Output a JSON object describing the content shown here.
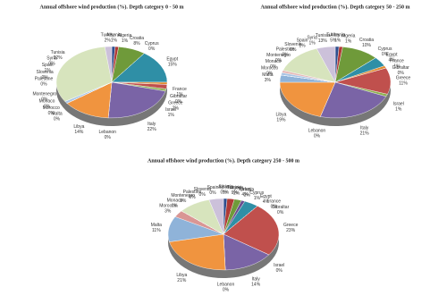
{
  "chart_data": [
    {
      "type": "pie",
      "title": "Annual offshore wind production (%). Depth category 0 - 50 m",
      "categories": [
        "Albania",
        "Algeria",
        "Croatia",
        "Cyprus",
        "Egypt",
        "France",
        "Gibraltar",
        "Greece",
        "Israel",
        "Italy",
        "Lebanon",
        "Libya",
        "Malta",
        "Morocco",
        "Monaco",
        "Montenegro",
        "Palestine",
        "Slovenia",
        "Spain",
        "Syria",
        "Tunisia",
        "Turkey"
      ],
      "values": [
        1,
        1,
        8,
        0,
        15,
        1,
        0,
        2,
        1,
        22,
        0,
        14,
        0,
        0,
        0,
        0,
        0,
        0,
        1,
        0,
        32,
        2
      ],
      "value_labels": [
        "1%",
        "1%",
        "8%",
        "0%",
        "15%",
        "1%",
        "0%",
        "2%",
        "1%",
        "22%",
        "0%",
        "14%",
        "0%",
        "0%",
        "0%",
        "0%",
        "0%",
        "0%",
        "1%",
        "0%",
        "32%",
        "2%"
      ],
      "colors": [
        "#2f4f8f",
        "#b03a36",
        "#6f9a3a",
        "#6a4f8f",
        "#2f8fa6",
        "#e08a2e",
        "#3f6fb0",
        "#c0504d",
        "#8db04f",
        "#7a64a6",
        "#3fa6c0",
        "#f0943f",
        "#8fb3d9",
        "#d99694",
        "#c3d69b",
        "#b3a2c7",
        "#93cddd",
        "#fac08f",
        "#a9c4e4",
        "#e6b9b8",
        "#d7e4bd",
        "#ccc1da"
      ]
    },
    {
      "type": "pie",
      "title": "Annual offshore wind production (%). Depth category 50 - 250 m",
      "categories": [
        "Albania",
        "Algeria",
        "Croatia",
        "Cyprus",
        "Egypt",
        "France",
        "Gibraltar",
        "Greece",
        "Israel",
        "Italy",
        "Lebanon",
        "Libya",
        "Malta",
        "Morocco",
        "Monaco",
        "Montenegro",
        "Palestine",
        "Slovenia",
        "Spain",
        "Syria",
        "Tunisia",
        "Turkey"
      ],
      "values": [
        1,
        1,
        10,
        0,
        4,
        1,
        0,
        11,
        1,
        21,
        0,
        19,
        3,
        0,
        0,
        0,
        0,
        0,
        1,
        1,
        13,
        5
      ],
      "value_labels": [
        "1%",
        "1%",
        "10%",
        "0%",
        "4%",
        "1%",
        "0%",
        "11%",
        "1%",
        "21%",
        "0%",
        "19%",
        "3%",
        "0%",
        "0%",
        "0%",
        "0%",
        "0%",
        "1%",
        "1%",
        "13%",
        "5%"
      ],
      "colors": [
        "#2f4f8f",
        "#b03a36",
        "#6f9a3a",
        "#6a4f8f",
        "#2f8fa6",
        "#e08a2e",
        "#3f6fb0",
        "#c0504d",
        "#8db04f",
        "#7a64a6",
        "#3fa6c0",
        "#f0943f",
        "#8fb3d9",
        "#d99694",
        "#c3d69b",
        "#b3a2c7",
        "#93cddd",
        "#fac08f",
        "#a9c4e4",
        "#e6b9b8",
        "#d7e4bd",
        "#ccc1da"
      ]
    },
    {
      "type": "pie",
      "title": "Annual offshore wind production (%). Depth category 250 - 500 m",
      "categories": [
        "Albania",
        "Algeria",
        "Croatia",
        "Cyprus",
        "Egypt",
        "France",
        "Gibraltar",
        "Greece",
        "Israel",
        "Italy",
        "Lebanon",
        "Libya",
        "Malta",
        "Morocco",
        "Monaco",
        "Montenegro",
        "Palestine",
        "Slovenia",
        "Spain",
        "Syria",
        "Tunisia",
        "Turkey"
      ],
      "values": [
        1,
        2,
        2,
        1,
        4,
        0,
        0,
        23,
        0,
        14,
        0,
        21,
        11,
        3,
        0,
        0,
        0,
        0,
        0,
        0,
        9,
        4
      ],
      "value_labels": [
        "1%",
        "2%",
        "2%",
        "1%",
        "4%",
        "0%",
        "0%",
        "23%",
        "0%",
        "14%",
        "0%",
        "21%",
        "11%",
        "3%",
        "0%",
        "0%",
        "0%",
        "0%",
        "0%",
        "0%",
        "9%",
        "4%"
      ],
      "colors": [
        "#2f4f8f",
        "#b03a36",
        "#6f9a3a",
        "#6a4f8f",
        "#2f8fa6",
        "#e08a2e",
        "#3f6fb0",
        "#c0504d",
        "#8db04f",
        "#7a64a6",
        "#3fa6c0",
        "#f0943f",
        "#8fb3d9",
        "#d99694",
        "#c3d69b",
        "#b3a2c7",
        "#93cddd",
        "#fac08f",
        "#a9c4e4",
        "#e6b9b8",
        "#d7e4bd",
        "#ccc1da"
      ]
    }
  ]
}
